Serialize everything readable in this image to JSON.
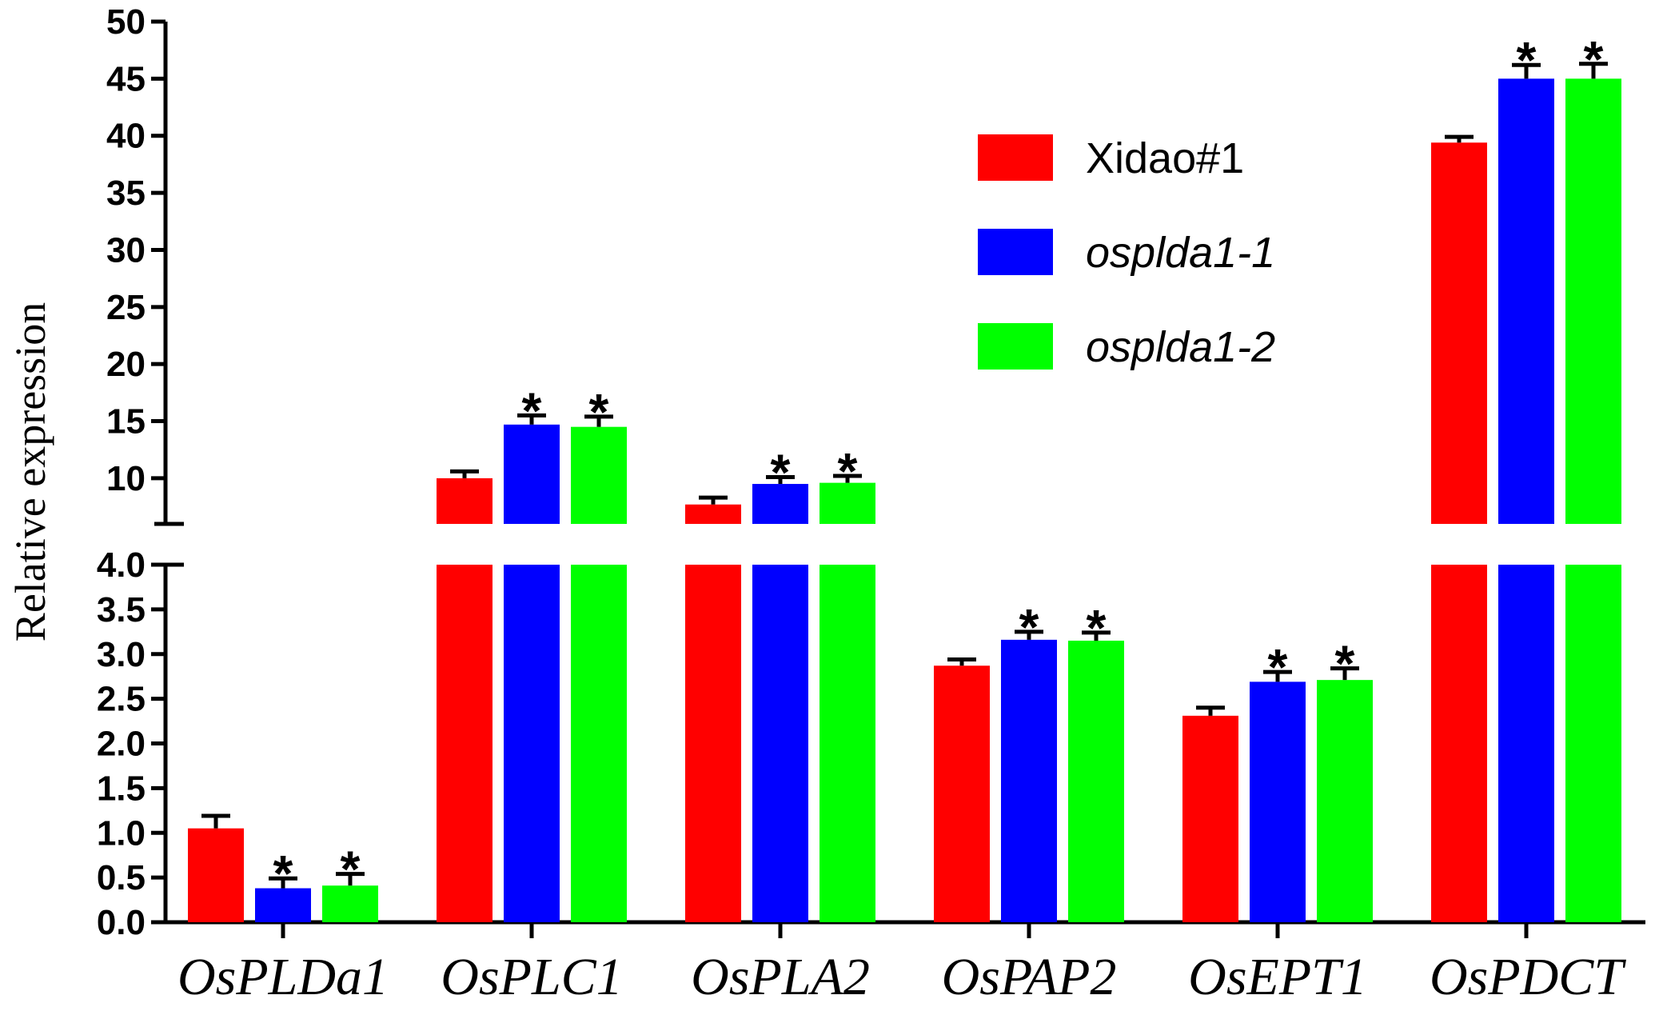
{
  "chart_data": {
    "type": "bar",
    "ylabel": "Relative expression",
    "xlabel": "",
    "categories": [
      "OsPLDa1",
      "OsPLC1",
      "OsPLA2",
      "OsPAP2",
      "OsEPT1",
      "OsPDCT"
    ],
    "series": [
      {
        "name": "Xidao#1",
        "color": "#ff0000",
        "italic": false,
        "values": [
          1.05,
          10.0,
          7.7,
          2.87,
          2.31,
          39.4
        ],
        "errors": [
          0.14,
          0.6,
          0.6,
          0.07,
          0.09,
          0.5
        ],
        "significant": [
          false,
          false,
          false,
          false,
          false,
          false
        ]
      },
      {
        "name": "osplda1-1",
        "color": "#0000ff",
        "italic": true,
        "values": [
          0.38,
          14.7,
          9.5,
          3.16,
          2.69,
          45.0
        ],
        "errors": [
          0.11,
          0.8,
          0.6,
          0.09,
          0.11,
          1.2
        ],
        "significant": [
          true,
          true,
          true,
          true,
          true,
          true
        ]
      },
      {
        "name": "osplda1-2",
        "color": "#00ff00",
        "italic": true,
        "values": [
          0.41,
          14.5,
          9.6,
          3.15,
          2.71,
          45.0
        ],
        "errors": [
          0.13,
          0.9,
          0.6,
          0.09,
          0.13,
          1.3
        ],
        "significant": [
          true,
          true,
          true,
          true,
          true,
          true
        ]
      }
    ],
    "significance_mark": "*",
    "y_axis_break": true,
    "lower_segment": {
      "ylim": [
        0.0,
        4.0
      ],
      "ticks": [
        "0.0",
        "0.5",
        "1.0",
        "1.5",
        "2.0",
        "2.5",
        "3.0",
        "3.5",
        "4.0"
      ]
    },
    "upper_segment": {
      "ylim": [
        6.0,
        50.0
      ],
      "ticks": [
        "10",
        "15",
        "20",
        "25",
        "30",
        "35",
        "40",
        "45",
        "50"
      ]
    },
    "legend_position": "top-center"
  }
}
